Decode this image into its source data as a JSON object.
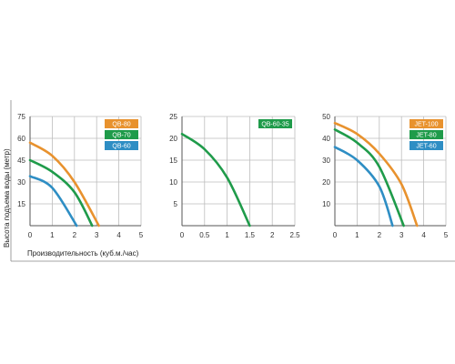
{
  "labels": {
    "ylabel": "Высота подъема воды (метр)",
    "xlabel": "Производительность (куб.м./час)"
  },
  "colors": {
    "orange": "#e8922e",
    "green": "#1f9b4a",
    "blue": "#2e8ec4",
    "grid": "#bdbdbd",
    "axis": "#555555"
  },
  "chart_data": [
    {
      "type": "line",
      "xlim": [
        0,
        5
      ],
      "ylim": [
        0,
        75
      ],
      "x_ticks": [
        "0",
        "1",
        "2",
        "3",
        "4",
        "5"
      ],
      "y_ticks": [
        "15",
        "30",
        "45",
        "60",
        "75"
      ],
      "legend_position": "top-right",
      "series": [
        {
          "name": "QB-80",
          "color": "#e8922e",
          "points": [
            [
              0,
              57
            ],
            [
              1,
              48
            ],
            [
              2,
              30
            ],
            [
              3.1,
              0
            ]
          ]
        },
        {
          "name": "QB-70",
          "color": "#1f9b4a",
          "points": [
            [
              0,
              45
            ],
            [
              1,
              37
            ],
            [
              2,
              23
            ],
            [
              2.8,
              0
            ]
          ]
        },
        {
          "name": "QB-60",
          "color": "#2e8ec4",
          "points": [
            [
              0,
              34
            ],
            [
              1,
              26
            ],
            [
              2.1,
              0
            ]
          ]
        }
      ]
    },
    {
      "type": "line",
      "xlim": [
        0,
        2.5
      ],
      "ylim": [
        0,
        25
      ],
      "x_ticks": [
        "0",
        "0.5",
        "1",
        "1.5",
        "2",
        "2.5"
      ],
      "y_ticks": [
        "5",
        "10",
        "15",
        "20",
        "25"
      ],
      "legend_position": "top-right",
      "series": [
        {
          "name": "QB-60-35",
          "color": "#1f9b4a",
          "points": [
            [
              0,
              21
            ],
            [
              0.5,
              17.5
            ],
            [
              1,
              11
            ],
            [
              1.5,
              0
            ]
          ]
        }
      ]
    },
    {
      "type": "line",
      "xlim": [
        0,
        5
      ],
      "ylim": [
        0,
        50
      ],
      "x_ticks": [
        "0",
        "1",
        "2",
        "3",
        "4",
        "5"
      ],
      "y_ticks": [
        "10",
        "20",
        "30",
        "40",
        "50"
      ],
      "legend_position": "top-right",
      "series": [
        {
          "name": "JET-100",
          "color": "#e8922e",
          "points": [
            [
              0,
              47
            ],
            [
              1,
              42
            ],
            [
              2,
              33
            ],
            [
              3,
              19
            ],
            [
              3.7,
              0
            ]
          ]
        },
        {
          "name": "JET-80",
          "color": "#1f9b4a",
          "points": [
            [
              0,
              44
            ],
            [
              1,
              38
            ],
            [
              2,
              27
            ],
            [
              3.1,
              0
            ]
          ]
        },
        {
          "name": "JET-60",
          "color": "#2e8ec4",
          "points": [
            [
              0,
              36
            ],
            [
              1,
              30
            ],
            [
              2,
              18
            ],
            [
              2.6,
              0
            ]
          ]
        }
      ]
    }
  ]
}
